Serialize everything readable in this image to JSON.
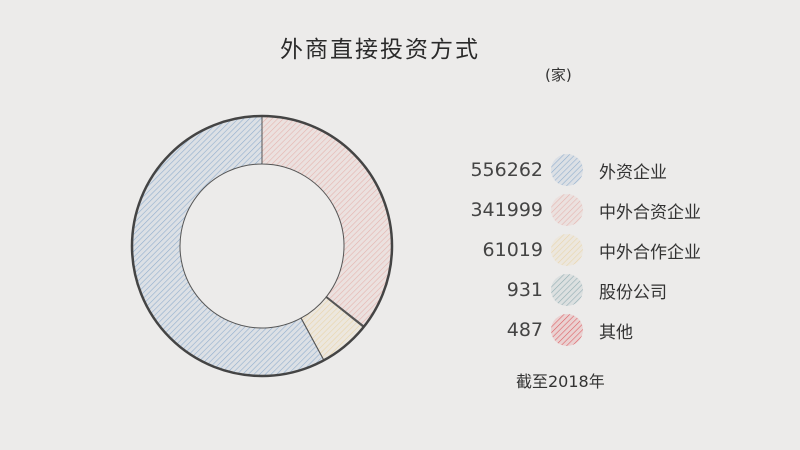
{
  "chart_data": {
    "type": "pie",
    "donut": true,
    "title": "外商直接投资方式",
    "unit": "(家)",
    "note": "截至2018年",
    "legend_position": "right",
    "slices": [
      {
        "name": "中外合资企业",
        "value": 341999,
        "color": "#e4a9a2"
      },
      {
        "name": "股份公司",
        "value": 931,
        "color": "#7fa0a8"
      },
      {
        "name": "其他",
        "value": 487,
        "color": "#d9444a"
      },
      {
        "name": "中外合作企业",
        "value": 61019,
        "color": "#e8cf9c"
      },
      {
        "name": "外资企业",
        "value": 556262,
        "color": "#7ea3c8"
      }
    ],
    "legend": [
      {
        "value": "556262",
        "name": "外资企业",
        "color": "#7ea3c8"
      },
      {
        "value": "341999",
        "name": "中外合资企业",
        "color": "#e4a9a2"
      },
      {
        "value": "61019",
        "name": "中外合作企业",
        "color": "#e8cf9c"
      },
      {
        "value": "931",
        "name": "股份公司",
        "color": "#7fa0a8"
      },
      {
        "value": "487",
        "name": "其他",
        "color": "#d9444a"
      }
    ]
  }
}
